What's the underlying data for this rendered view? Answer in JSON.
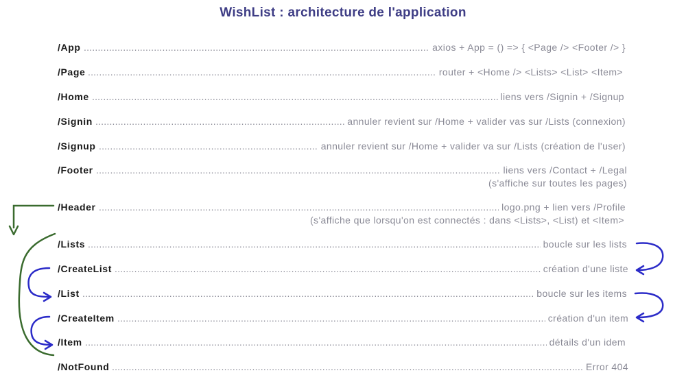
{
  "title": "WishList : architecture de l'application",
  "rows": [
    {
      "route": "/App",
      "desc": "axios + App = () => { <Page /> <Footer /> }"
    },
    {
      "route": "/Page",
      "desc": "router + <Home /> <Lists> <List> <Item>"
    },
    {
      "route": "/Home",
      "desc": "liens vers /Signin + /Signup"
    },
    {
      "route": "/Signin",
      "desc": "annuler revient sur /Home + valider vas sur /Lists (connexion)"
    },
    {
      "route": "/Signup",
      "desc": "annuler revient sur /Home + valider va sur /Lists (création de l'user)"
    },
    {
      "route": "/Footer",
      "desc": "liens vers /Contact + /Legal",
      "note": "(s'affiche sur toutes les pages)"
    },
    {
      "route": "/Header",
      "desc": "logo.png + lien vers /Profile",
      "note": "(s'affiche que lorsqu'on est connectés : dans <Lists>, <List) et <Item>"
    },
    {
      "route": "/Lists",
      "desc": "boucle sur les lists"
    },
    {
      "route": "/CreateList",
      "desc": "création d'une liste"
    },
    {
      "route": "/List",
      "desc": "boucle sur les items"
    },
    {
      "route": "/CreateItem",
      "desc": "création d'un item"
    },
    {
      "route": "/Item",
      "desc": "détails d'un idem"
    },
    {
      "route": "/NotFound",
      "desc": "Error 404"
    }
  ],
  "colors": {
    "title": "#3e3d85",
    "route": "#1a1a1a",
    "desc": "#8a8a96",
    "green_arrow": "#3a6b2e",
    "blue_arrow": "#2b2bc8"
  }
}
